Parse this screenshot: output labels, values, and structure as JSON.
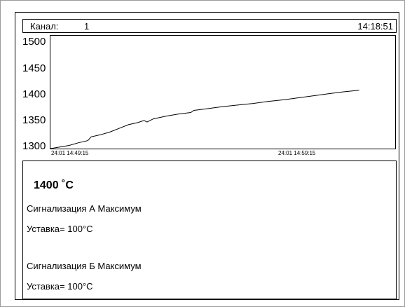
{
  "header": {
    "channel_label": "Канал:",
    "channel_value": "1",
    "time": "14:18:51"
  },
  "chart_data": {
    "type": "line",
    "y_ticks": [
      "1500",
      "1450",
      "1400",
      "1350",
      "1300"
    ],
    "x_ticks": [
      "24:01 14:49:15",
      "24:01 14:59:15"
    ],
    "ylim": [
      1290,
      1500
    ],
    "series": [
      {
        "color": "#000000",
        "points": [
          [
            0.0,
            1290
          ],
          [
            0.03,
            1293
          ],
          [
            0.06,
            1296
          ],
          [
            0.09,
            1301
          ],
          [
            0.12,
            1305
          ],
          [
            0.13,
            1312
          ],
          [
            0.16,
            1316
          ],
          [
            0.19,
            1321
          ],
          [
            0.22,
            1328
          ],
          [
            0.25,
            1335
          ],
          [
            0.28,
            1339
          ],
          [
            0.3,
            1343
          ],
          [
            0.31,
            1340
          ],
          [
            0.33,
            1346
          ],
          [
            0.37,
            1351
          ],
          [
            0.41,
            1355
          ],
          [
            0.45,
            1358
          ],
          [
            0.46,
            1362
          ],
          [
            0.5,
            1365
          ],
          [
            0.55,
            1369
          ],
          [
            0.6,
            1372
          ],
          [
            0.65,
            1375
          ],
          [
            0.7,
            1379
          ],
          [
            0.75,
            1382
          ],
          [
            0.8,
            1386
          ],
          [
            0.85,
            1390
          ],
          [
            0.9,
            1394
          ],
          [
            0.94,
            1397
          ],
          [
            0.99,
            1400
          ]
        ]
      }
    ]
  },
  "panel": {
    "temperature": "1400 ˚C",
    "alarm_a": "Сигнализация А Максимум",
    "setpoint_a": "Уставка=   100°C",
    "alarm_b": "Сигнализация Б Максимум",
    "setpoint_b": "Уставка=   100°C"
  }
}
